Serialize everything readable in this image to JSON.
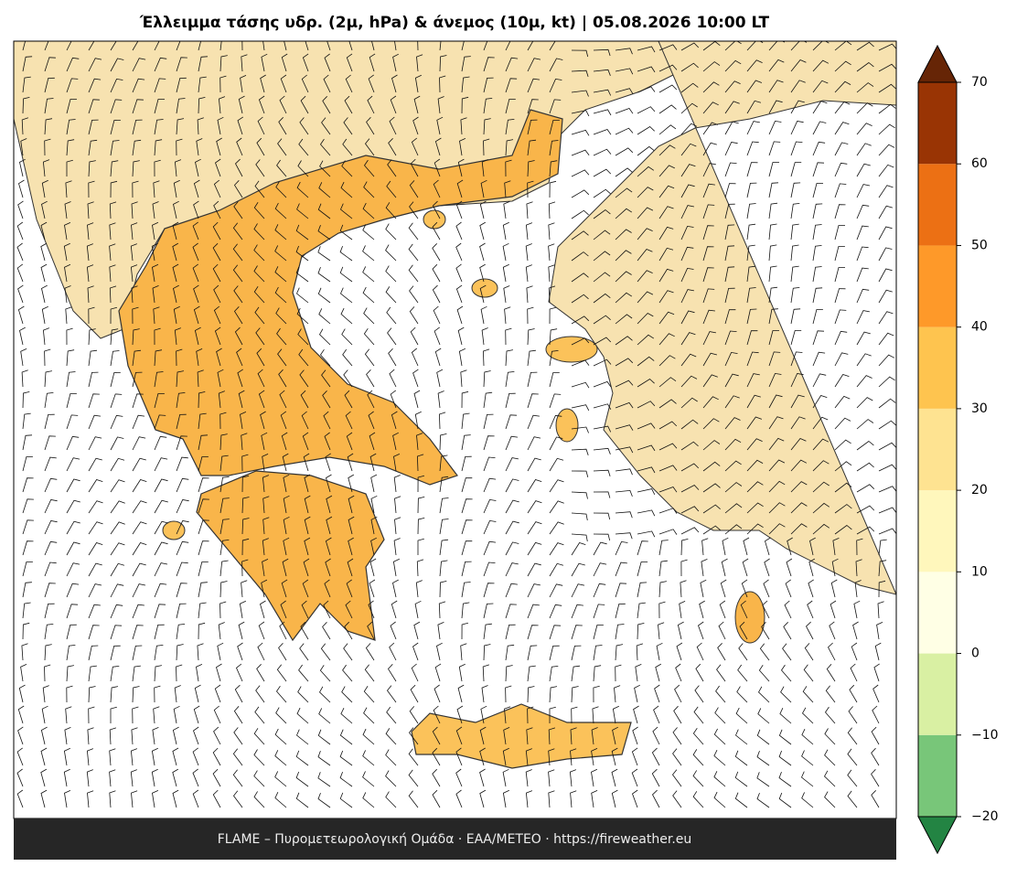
{
  "title": "Έλλειμμα τάσης υδρ. (2μ, hPa) & άνεμος (10μ, kt)  |  05.08.2026 10:00 LT",
  "footer": "FLAME – Πυρομετεωρολογική Ομάδα · ΕΑΑ/METEO · https://fireweather.eu",
  "colorbar": {
    "ticks": [
      {
        "value": -20,
        "label": "−20"
      },
      {
        "value": -10,
        "label": "−10"
      },
      0,
      10,
      20,
      30,
      40,
      50,
      60,
      70
    ],
    "colors": [
      "#78c679",
      "#d9f0a3",
      "#ffffe5",
      "#fff7bc",
      "#fee391",
      "#fec44f",
      "#fe9929",
      "#ec7014",
      "#993404"
    ],
    "under_color": "#238443",
    "over_color": "#662506"
  }
}
